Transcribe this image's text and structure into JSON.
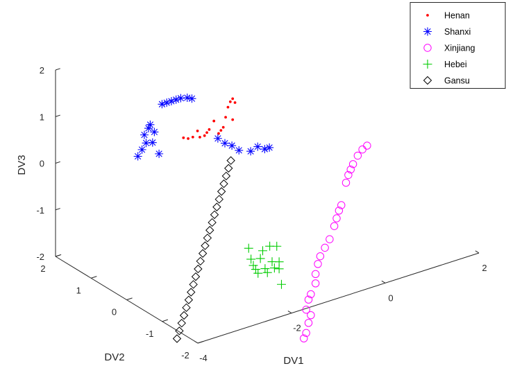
{
  "chart_data": {
    "type": "scatter",
    "projection": "3d",
    "title": "",
    "xlabel": "DV1",
    "ylabel": "DV2",
    "zlabel": "DV3",
    "xlim": [
      -4,
      2
    ],
    "ylim": [
      -2,
      2
    ],
    "zlim": [
      -2,
      2
    ],
    "xticks": [
      "-4",
      "-2",
      "0",
      "2"
    ],
    "yticks": [
      "-2",
      "-1",
      "0",
      "1",
      "2"
    ],
    "zticks": [
      "-2",
      "-1",
      "0",
      "1",
      "2"
    ],
    "grid": false,
    "legend_position": "top-right",
    "series": [
      {
        "name": "Henan",
        "marker": "dot",
        "color": "#ff0000",
        "points": [
          [
            -2.75,
            0.05,
            1.05
          ],
          [
            -2.65,
            0.05,
            1.0
          ],
          [
            -2.55,
            0.05,
            1.0
          ],
          [
            -2.45,
            0.05,
            1.1
          ],
          [
            -2.4,
            0.05,
            0.95
          ],
          [
            -2.3,
            0.05,
            0.95
          ],
          [
            -2.25,
            0.05,
            1.0
          ],
          [
            -2.2,
            0.05,
            1.05
          ],
          [
            -2.1,
            0.05,
            1.2
          ],
          [
            -2.0,
            0.05,
            0.9
          ],
          [
            -1.95,
            0.05,
            0.95
          ],
          [
            -1.9,
            0.05,
            1.0
          ],
          [
            -1.85,
            0.05,
            1.2
          ],
          [
            -1.8,
            0.05,
            1.4
          ],
          [
            -1.75,
            0.05,
            1.5
          ],
          [
            -1.7,
            0.05,
            1.55
          ],
          [
            -1.7,
            0.05,
            1.1
          ],
          [
            -1.65,
            0.05,
            1.45
          ]
        ]
      },
      {
        "name": "Shanxi",
        "marker": "asterisk",
        "color": "#0000ff",
        "points": [
          [
            -2.85,
            1.2,
            0.15
          ],
          [
            -2.8,
            1.15,
            0.3
          ],
          [
            -2.75,
            1.1,
            0.45
          ],
          [
            -2.75,
            1.15,
            0.6
          ],
          [
            -2.7,
            1.1,
            0.75
          ],
          [
            -2.7,
            1.05,
            0.85
          ],
          [
            -2.65,
            1.0,
            0.7
          ],
          [
            -2.65,
            1.05,
            0.45
          ],
          [
            -2.55,
            1.0,
            0.2
          ],
          [
            -2.6,
            0.85,
            1.35
          ],
          [
            -2.5,
            0.85,
            1.35
          ],
          [
            -2.4,
            0.85,
            1.35
          ],
          [
            -2.3,
            0.85,
            1.35
          ],
          [
            -2.2,
            0.85,
            1.35
          ],
          [
            -2.1,
            0.8,
            1.35
          ],
          [
            -2.0,
            0.8,
            1.3
          ],
          [
            -1.75,
            0.4,
            0.55
          ],
          [
            -1.6,
            0.4,
            0.4
          ],
          [
            -1.45,
            0.4,
            0.3
          ],
          [
            -1.3,
            0.4,
            0.15
          ],
          [
            -1.05,
            0.4,
            0.05
          ],
          [
            -0.9,
            0.4,
            0.1
          ],
          [
            -0.75,
            0.4,
            0.0
          ],
          [
            -0.65,
            0.4,
            0.0
          ]
        ]
      },
      {
        "name": "Xinjiang",
        "marker": "circle",
        "color": "#ff00ff",
        "points": [
          [
            0.6,
            -0.7,
            0.15
          ],
          [
            0.5,
            -0.7,
            0.1
          ],
          [
            0.4,
            -0.7,
            0.0
          ],
          [
            0.3,
            -0.7,
            -0.15
          ],
          [
            0.25,
            -0.7,
            -0.25
          ],
          [
            0.2,
            -0.7,
            -0.35
          ],
          [
            0.15,
            -0.7,
            -0.5
          ],
          [
            0.05,
            -0.7,
            -0.95
          ],
          [
            0.0,
            -0.7,
            -1.05
          ],
          [
            -0.05,
            -0.7,
            -1.2
          ],
          [
            -0.1,
            -0.7,
            -1.35
          ],
          [
            -0.2,
            -0.7,
            -1.6
          ],
          [
            -0.3,
            -0.7,
            -1.75
          ],
          [
            -0.4,
            -0.7,
            -1.9
          ],
          [
            -0.45,
            -0.7,
            -2.05
          ],
          [
            -0.5,
            -0.7,
            -2.25
          ],
          [
            -0.5,
            -0.7,
            -2.45
          ],
          [
            -0.6,
            -0.7,
            -2.65
          ],
          [
            -0.65,
            -0.7,
            -2.75
          ],
          [
            -0.7,
            -0.7,
            -2.95
          ],
          [
            -0.6,
            -0.7,
            -3.1
          ],
          [
            -0.65,
            -0.7,
            -3.25
          ],
          [
            -0.7,
            -0.7,
            -3.45
          ],
          [
            -0.75,
            -0.7,
            -3.55
          ]
        ]
      },
      {
        "name": "Hebei",
        "marker": "plus",
        "color": "#00cc00",
        "points": [
          [
            -1.7,
            -0.4,
            -1.45
          ],
          [
            -1.65,
            -0.4,
            -1.7
          ],
          [
            -1.6,
            -0.4,
            -1.85
          ],
          [
            -1.55,
            -0.4,
            -1.95
          ],
          [
            -1.5,
            -0.4,
            -2.05
          ],
          [
            -1.45,
            -0.4,
            -1.75
          ],
          [
            -1.4,
            -0.4,
            -1.6
          ],
          [
            -1.35,
            -0.4,
            -2.0
          ],
          [
            -1.3,
            -0.4,
            -2.1
          ],
          [
            -1.25,
            -0.4,
            -1.55
          ],
          [
            -1.2,
            -0.4,
            -1.9
          ],
          [
            -1.15,
            -0.4,
            -2.05
          ],
          [
            -1.1,
            -0.4,
            -1.6
          ],
          [
            -1.05,
            -0.4,
            -2.1
          ],
          [
            -1.0,
            -0.4,
            -2.45
          ],
          [
            -1.05,
            -0.4,
            -1.95
          ]
        ]
      },
      {
        "name": "Gansu",
        "marker": "diamond",
        "color": "#000000",
        "points": [
          [
            -1.7,
            0.1,
            0.2
          ],
          [
            -1.75,
            0.1,
            0.05
          ],
          [
            -1.8,
            0.1,
            -0.1
          ],
          [
            -1.85,
            0.1,
            -0.25
          ],
          [
            -1.9,
            0.1,
            -0.4
          ],
          [
            -1.95,
            0.1,
            -0.55
          ],
          [
            -2.0,
            0.1,
            -0.7
          ],
          [
            -2.05,
            0.1,
            -0.85
          ],
          [
            -2.1,
            0.1,
            -1.0
          ],
          [
            -2.15,
            0.1,
            -1.15
          ],
          [
            -2.2,
            0.1,
            -1.3
          ],
          [
            -2.25,
            0.1,
            -1.45
          ],
          [
            -2.3,
            0.1,
            -1.6
          ],
          [
            -2.35,
            0.1,
            -1.75
          ],
          [
            -2.4,
            0.1,
            -1.9
          ],
          [
            -2.45,
            0.1,
            -2.05
          ],
          [
            -2.5,
            0.1,
            -2.2
          ],
          [
            -2.55,
            0.1,
            -2.35
          ],
          [
            -2.6,
            0.1,
            -2.5
          ],
          [
            -2.65,
            0.1,
            -2.65
          ],
          [
            -2.7,
            0.1,
            -2.8
          ],
          [
            -2.75,
            0.1,
            -2.95
          ],
          [
            -2.8,
            0.1,
            -3.1
          ],
          [
            -2.85,
            0.1,
            -3.25
          ]
        ]
      }
    ]
  }
}
